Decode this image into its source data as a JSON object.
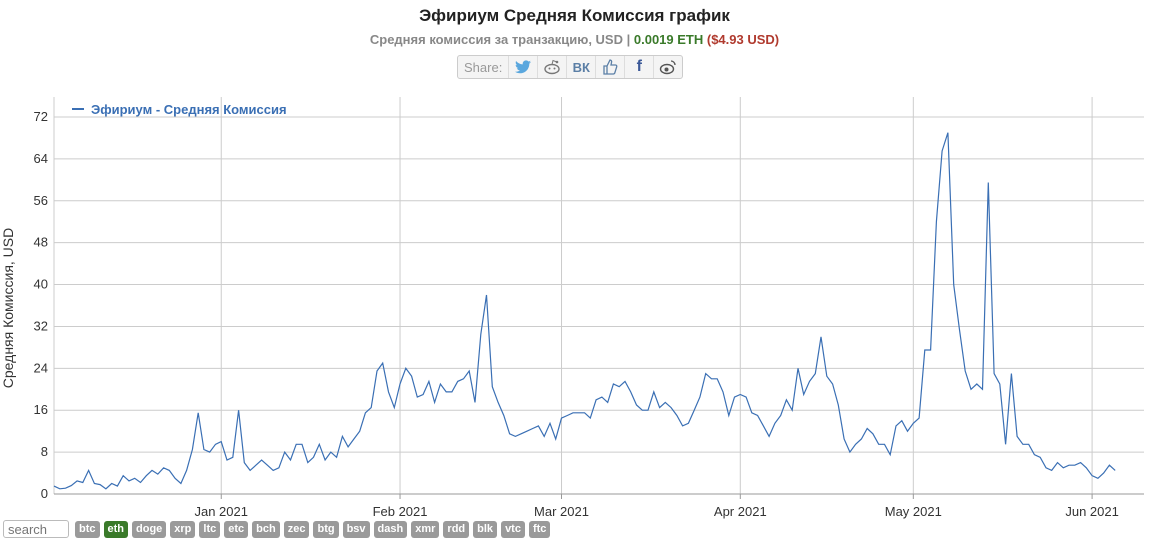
{
  "header": {
    "title": "Эфириум Средняя Комиссия график",
    "subtitle_prefix": "Средняя комиссия за транзакцию, USD",
    "subtitle_sep": " | ",
    "subtitle_eth": "0.0019 ETH",
    "subtitle_usd": "($4.93 USD)"
  },
  "share": {
    "label": "Share:",
    "icons": [
      "twitter-icon",
      "reddit-icon",
      "vk-icon",
      "like-icon",
      "facebook-icon",
      "weibo-icon"
    ]
  },
  "colors": {
    "line": "#3a6fb4",
    "grid": "#cccccc",
    "active_coin": "#3a7a2a",
    "coin": "#9a9a9a"
  },
  "search": {
    "placeholder": "search"
  },
  "coins": [
    "btc",
    "eth",
    "doge",
    "xrp",
    "ltc",
    "etc",
    "bch",
    "zec",
    "btg",
    "bsv",
    "dash",
    "xmr",
    "rdd",
    "blk",
    "vtc",
    "ftc"
  ],
  "active_coin": "eth",
  "chart_data": {
    "type": "line",
    "title": "Эфириум Средняя Комиссия график",
    "ylabel": "Средняя Комиссия, USD",
    "xlabel": "",
    "legend": {
      "position": "top-left"
    },
    "grid": true,
    "ylim": [
      0,
      72
    ],
    "yticks": [
      0,
      8,
      16,
      24,
      32,
      40,
      48,
      56,
      64,
      72
    ],
    "xlim": [
      "2020-12-03",
      "2021-06-10"
    ],
    "xticks": [
      {
        "date": "2021-01-01",
        "label": "Jan 2021"
      },
      {
        "date": "2021-02-01",
        "label": "Feb 2021"
      },
      {
        "date": "2021-03-01",
        "label": "Mar 2021"
      },
      {
        "date": "2021-04-01",
        "label": "Apr 2021"
      },
      {
        "date": "2021-05-01",
        "label": "May 2021"
      },
      {
        "date": "2021-06-01",
        "label": "Jun 2021"
      }
    ],
    "series": [
      {
        "name": "Эфириум - Средняя Комиссия",
        "points": [
          [
            "2020-12-03",
            1.5
          ],
          [
            "2020-12-04",
            1.0
          ],
          [
            "2020-12-05",
            1.1
          ],
          [
            "2020-12-06",
            1.6
          ],
          [
            "2020-12-07",
            2.5
          ],
          [
            "2020-12-08",
            2.2
          ],
          [
            "2020-12-09",
            4.5
          ],
          [
            "2020-12-10",
            2.0
          ],
          [
            "2020-12-11",
            1.8
          ],
          [
            "2020-12-12",
            1.0
          ],
          [
            "2020-12-13",
            2.0
          ],
          [
            "2020-12-14",
            1.5
          ],
          [
            "2020-12-15",
            3.5
          ],
          [
            "2020-12-16",
            2.5
          ],
          [
            "2020-12-17",
            3.0
          ],
          [
            "2020-12-18",
            2.2
          ],
          [
            "2020-12-19",
            3.5
          ],
          [
            "2020-12-20",
            4.5
          ],
          [
            "2020-12-21",
            3.8
          ],
          [
            "2020-12-22",
            5.0
          ],
          [
            "2020-12-23",
            4.5
          ],
          [
            "2020-12-24",
            3.0
          ],
          [
            "2020-12-25",
            2.0
          ],
          [
            "2020-12-26",
            4.5
          ],
          [
            "2020-12-27",
            8.5
          ],
          [
            "2020-12-28",
            15.5
          ],
          [
            "2020-12-29",
            8.5
          ],
          [
            "2020-12-30",
            8.0
          ],
          [
            "2020-12-31",
            9.5
          ],
          [
            "2021-01-01",
            10.0
          ],
          [
            "2021-01-02",
            6.5
          ],
          [
            "2021-01-03",
            7.0
          ],
          [
            "2021-01-04",
            16.0
          ],
          [
            "2021-01-05",
            6.0
          ],
          [
            "2021-01-06",
            4.5
          ],
          [
            "2021-01-07",
            5.5
          ],
          [
            "2021-01-08",
            6.5
          ],
          [
            "2021-01-09",
            5.5
          ],
          [
            "2021-01-10",
            4.5
          ],
          [
            "2021-01-11",
            5.0
          ],
          [
            "2021-01-12",
            8.0
          ],
          [
            "2021-01-13",
            6.5
          ],
          [
            "2021-01-14",
            9.5
          ],
          [
            "2021-01-15",
            9.5
          ],
          [
            "2021-01-16",
            6.0
          ],
          [
            "2021-01-17",
            7.0
          ],
          [
            "2021-01-18",
            9.5
          ],
          [
            "2021-01-19",
            6.5
          ],
          [
            "2021-01-20",
            8.0
          ],
          [
            "2021-01-21",
            7.0
          ],
          [
            "2021-01-22",
            11.0
          ],
          [
            "2021-01-23",
            9.0
          ],
          [
            "2021-01-24",
            10.5
          ],
          [
            "2021-01-25",
            12.0
          ],
          [
            "2021-01-26",
            15.5
          ],
          [
            "2021-01-27",
            16.5
          ],
          [
            "2021-01-28",
            23.5
          ],
          [
            "2021-01-29",
            25.0
          ],
          [
            "2021-01-30",
            19.5
          ],
          [
            "2021-01-31",
            16.5
          ],
          [
            "2021-02-01",
            21.0
          ],
          [
            "2021-02-02",
            24.0
          ],
          [
            "2021-02-03",
            22.5
          ],
          [
            "2021-02-04",
            18.5
          ],
          [
            "2021-02-05",
            19.0
          ],
          [
            "2021-02-06",
            21.5
          ],
          [
            "2021-02-07",
            17.5
          ],
          [
            "2021-02-08",
            21.0
          ],
          [
            "2021-02-09",
            19.5
          ],
          [
            "2021-02-10",
            19.5
          ],
          [
            "2021-02-11",
            21.5
          ],
          [
            "2021-02-12",
            22.0
          ],
          [
            "2021-02-13",
            23.5
          ],
          [
            "2021-02-14",
            17.5
          ],
          [
            "2021-02-15",
            30.5
          ],
          [
            "2021-02-16",
            38.0
          ],
          [
            "2021-02-17",
            20.5
          ],
          [
            "2021-02-18",
            17.5
          ],
          [
            "2021-02-19",
            15.0
          ],
          [
            "2021-02-20",
            11.5
          ],
          [
            "2021-02-21",
            11.0
          ],
          [
            "2021-02-22",
            11.5
          ],
          [
            "2021-02-23",
            12.0
          ],
          [
            "2021-02-24",
            12.5
          ],
          [
            "2021-02-25",
            13.0
          ],
          [
            "2021-02-26",
            11.0
          ],
          [
            "2021-02-27",
            13.5
          ],
          [
            "2021-02-28",
            10.5
          ],
          [
            "2021-03-01",
            14.5
          ],
          [
            "2021-03-02",
            15.0
          ],
          [
            "2021-03-03",
            15.5
          ],
          [
            "2021-03-04",
            15.5
          ],
          [
            "2021-03-05",
            15.5
          ],
          [
            "2021-03-06",
            14.5
          ],
          [
            "2021-03-07",
            18.0
          ],
          [
            "2021-03-08",
            18.5
          ],
          [
            "2021-03-09",
            17.5
          ],
          [
            "2021-03-10",
            21.0
          ],
          [
            "2021-03-11",
            20.5
          ],
          [
            "2021-03-12",
            21.5
          ],
          [
            "2021-03-13",
            19.5
          ],
          [
            "2021-03-14",
            17.0
          ],
          [
            "2021-03-15",
            16.0
          ],
          [
            "2021-03-16",
            16.0
          ],
          [
            "2021-03-17",
            19.5
          ],
          [
            "2021-03-18",
            16.5
          ],
          [
            "2021-03-19",
            17.5
          ],
          [
            "2021-03-20",
            16.5
          ],
          [
            "2021-03-21",
            15.0
          ],
          [
            "2021-03-22",
            13.0
          ],
          [
            "2021-03-23",
            13.5
          ],
          [
            "2021-03-24",
            16.0
          ],
          [
            "2021-03-25",
            18.5
          ],
          [
            "2021-03-26",
            23.0
          ],
          [
            "2021-03-27",
            22.0
          ],
          [
            "2021-03-28",
            22.0
          ],
          [
            "2021-03-29",
            19.5
          ],
          [
            "2021-03-30",
            15.0
          ],
          [
            "2021-03-31",
            18.5
          ],
          [
            "2021-04-01",
            19.0
          ],
          [
            "2021-04-02",
            18.5
          ],
          [
            "2021-04-03",
            15.5
          ],
          [
            "2021-04-04",
            15.0
          ],
          [
            "2021-04-05",
            13.0
          ],
          [
            "2021-04-06",
            11.0
          ],
          [
            "2021-04-07",
            13.5
          ],
          [
            "2021-04-08",
            15.0
          ],
          [
            "2021-04-09",
            18.0
          ],
          [
            "2021-04-10",
            16.0
          ],
          [
            "2021-04-11",
            24.0
          ],
          [
            "2021-04-12",
            19.0
          ],
          [
            "2021-04-13",
            21.5
          ],
          [
            "2021-04-14",
            23.0
          ],
          [
            "2021-04-15",
            30.0
          ],
          [
            "2021-04-16",
            22.5
          ],
          [
            "2021-04-17",
            21.0
          ],
          [
            "2021-04-18",
            17.0
          ],
          [
            "2021-04-19",
            10.5
          ],
          [
            "2021-04-20",
            8.0
          ],
          [
            "2021-04-21",
            9.5
          ],
          [
            "2021-04-22",
            10.5
          ],
          [
            "2021-04-23",
            12.5
          ],
          [
            "2021-04-24",
            11.5
          ],
          [
            "2021-04-25",
            9.5
          ],
          [
            "2021-04-26",
            9.5
          ],
          [
            "2021-04-27",
            7.5
          ],
          [
            "2021-04-28",
            13.0
          ],
          [
            "2021-04-29",
            14.0
          ],
          [
            "2021-04-30",
            12.0
          ],
          [
            "2021-05-01",
            13.5
          ],
          [
            "2021-05-02",
            14.5
          ],
          [
            "2021-05-03",
            27.5
          ],
          [
            "2021-05-04",
            27.5
          ],
          [
            "2021-05-05",
            52.0
          ],
          [
            "2021-05-06",
            65.5
          ],
          [
            "2021-05-07",
            69.0
          ],
          [
            "2021-05-08",
            40.0
          ],
          [
            "2021-05-09",
            31.5
          ],
          [
            "2021-05-10",
            23.5
          ],
          [
            "2021-05-11",
            20.0
          ],
          [
            "2021-05-12",
            21.0
          ],
          [
            "2021-05-13",
            20.0
          ],
          [
            "2021-05-14",
            59.5
          ],
          [
            "2021-05-15",
            23.0
          ],
          [
            "2021-05-16",
            21.0
          ],
          [
            "2021-05-17",
            9.5
          ],
          [
            "2021-05-18",
            23.0
          ],
          [
            "2021-05-19",
            11.0
          ],
          [
            "2021-05-20",
            9.5
          ],
          [
            "2021-05-21",
            9.5
          ],
          [
            "2021-05-22",
            7.5
          ],
          [
            "2021-05-23",
            7.0
          ],
          [
            "2021-05-24",
            5.0
          ],
          [
            "2021-05-25",
            4.5
          ],
          [
            "2021-05-26",
            6.0
          ],
          [
            "2021-05-27",
            5.0
          ],
          [
            "2021-05-28",
            5.5
          ],
          [
            "2021-05-29",
            5.5
          ],
          [
            "2021-05-30",
            6.0
          ],
          [
            "2021-05-31",
            5.0
          ],
          [
            "2021-06-01",
            3.5
          ],
          [
            "2021-06-02",
            3.0
          ],
          [
            "2021-06-03",
            4.0
          ],
          [
            "2021-06-04",
            5.5
          ],
          [
            "2021-06-05",
            4.5
          ]
        ]
      }
    ]
  }
}
